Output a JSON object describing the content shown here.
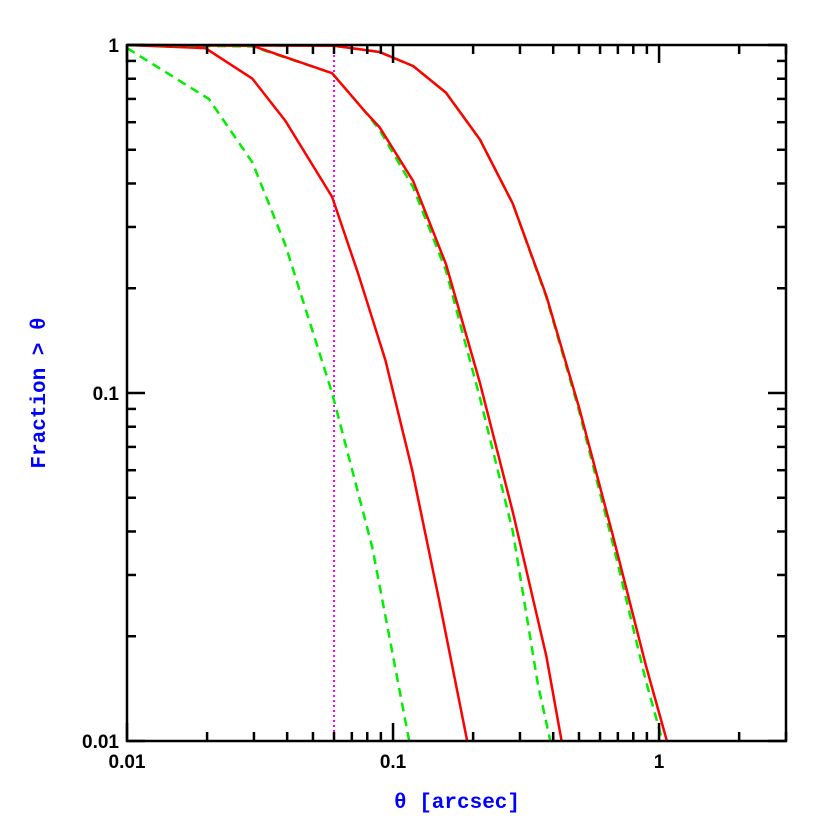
{
  "chart_data": {
    "type": "line",
    "title": "",
    "xlabel": "θ [arcsec]",
    "ylabel": "Fraction > θ",
    "xscale": "log",
    "yscale": "log",
    "xlim": [
      0.01,
      3
    ],
    "ylim": [
      0.01,
      1
    ],
    "grid": false,
    "x_tick_labels": [
      {
        "value": 0.01,
        "label": "0.01"
      },
      {
        "value": 0.1,
        "label": "0.1"
      },
      {
        "value": 1,
        "label": "1"
      }
    ],
    "y_tick_labels": [
      {
        "value": 0.01,
        "label": "0.01"
      },
      {
        "value": 0.1,
        "label": "0.1"
      },
      {
        "value": 1,
        "label": "1"
      }
    ],
    "colors": {
      "solid": "#ff0000",
      "dashed": "#00ee00",
      "vline": "#ff00ff",
      "label": "#0000ff",
      "axis": "#000000"
    },
    "vertical_line": {
      "x": 0.06,
      "style": "dotted",
      "color": "#ff00ff"
    },
    "series": [
      {
        "style": "dashed",
        "color": "#00ee00",
        "x": [
          0.01,
          0.0203,
          0.0296,
          0.0394,
          0.059,
          0.0836,
          0.115
        ],
        "y": [
          0.98,
          0.7,
          0.46,
          0.266,
          0.1,
          0.036,
          0.01
        ]
      },
      {
        "style": "solid",
        "color": "#ff0000",
        "x": [
          0.01,
          0.0197,
          0.0296,
          0.0394,
          0.059,
          0.074,
          0.0937,
          0.118,
          0.149,
          0.19
        ],
        "y": [
          1.0,
          0.98,
          0.8,
          0.605,
          0.366,
          0.22,
          0.124,
          0.06,
          0.0254,
          0.01
        ]
      },
      {
        "style": "dashed",
        "color": "#00ee00",
        "x": [
          0.01,
          0.0296,
          0.059,
          0.079,
          0.089,
          0.119,
          0.158,
          0.212,
          0.282,
          0.35,
          0.39
        ],
        "y": [
          1.0,
          0.99,
          0.83,
          0.64,
          0.57,
          0.39,
          0.225,
          0.097,
          0.04,
          0.0146,
          0.01
        ]
      },
      {
        "style": "solid",
        "color": "#ff0000",
        "x": [
          0.01,
          0.0296,
          0.059,
          0.079,
          0.089,
          0.119,
          0.158,
          0.212,
          0.282,
          0.377,
          0.43
        ],
        "y": [
          1.0,
          0.995,
          0.83,
          0.64,
          0.58,
          0.407,
          0.235,
          0.107,
          0.0455,
          0.0175,
          0.01
        ]
      },
      {
        "style": "dashed",
        "color": "#00ee00",
        "x": [
          0.01,
          0.06,
          0.089,
          0.119,
          0.158,
          0.212,
          0.282,
          0.377,
          0.5,
          0.67,
          0.89,
          1.03
        ],
        "y": [
          1.0,
          0.995,
          0.955,
          0.87,
          0.73,
          0.535,
          0.35,
          0.188,
          0.089,
          0.037,
          0.015,
          0.01
        ]
      },
      {
        "style": "solid",
        "color": "#ff0000",
        "x": [
          0.01,
          0.06,
          0.089,
          0.119,
          0.158,
          0.212,
          0.282,
          0.377,
          0.5,
          0.67,
          0.89,
          1.07
        ],
        "y": [
          1.0,
          0.995,
          0.955,
          0.87,
          0.73,
          0.535,
          0.35,
          0.19,
          0.091,
          0.039,
          0.0166,
          0.01
        ]
      }
    ]
  }
}
